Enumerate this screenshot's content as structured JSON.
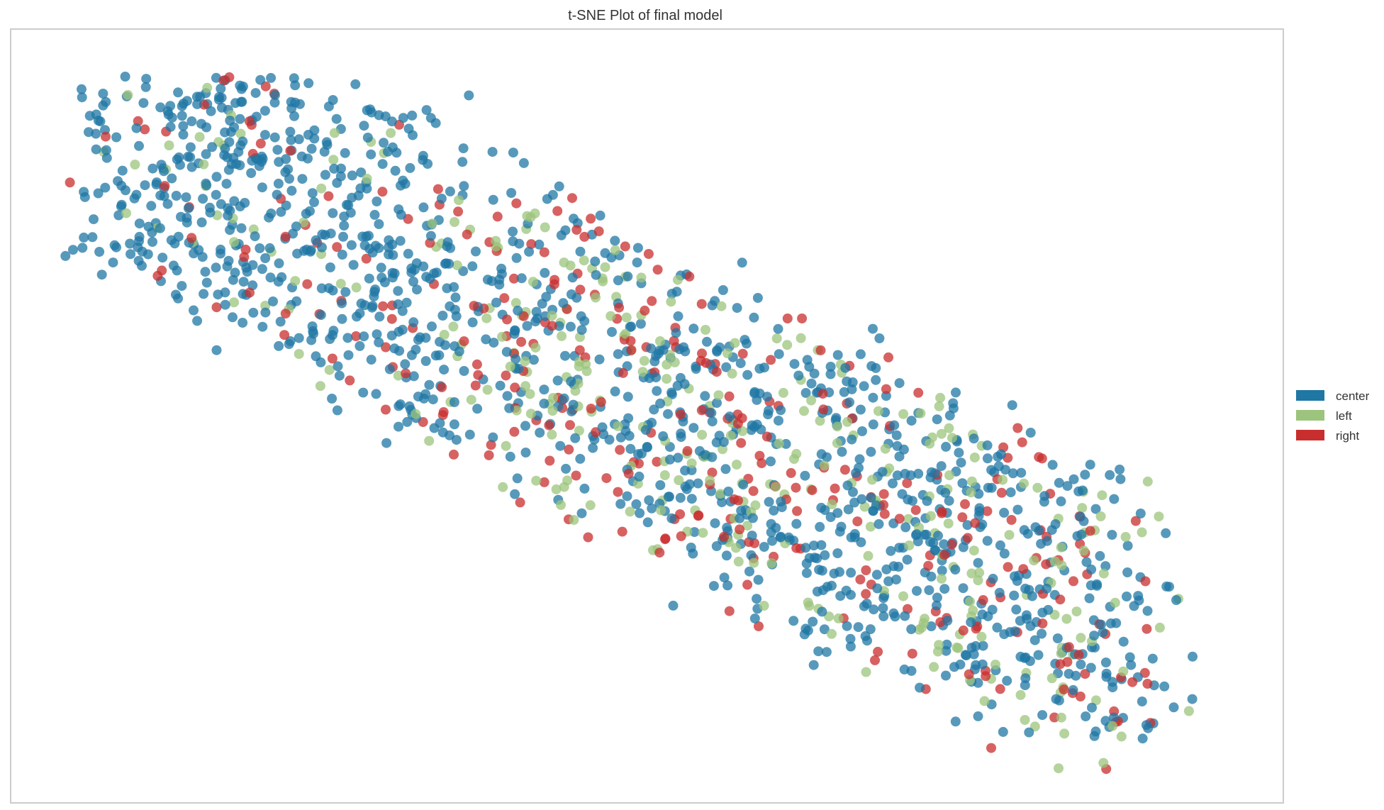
{
  "chart_data": {
    "type": "scatter",
    "title": "t-SNE Plot of final model",
    "xlabel": "",
    "ylabel": "",
    "xlim": [
      -1.0,
      1.0
    ],
    "ylim": [
      -1.0,
      1.0
    ],
    "grid": false,
    "legend_position": "right",
    "colors": {
      "center": "#1f77a4",
      "left": "#9cc47c",
      "right": "#c92e2e"
    },
    "series": [
      {
        "name": "center",
        "color": "#1f77a4",
        "points": []
      },
      {
        "name": "left",
        "color": "#9cc47c",
        "points": []
      },
      {
        "name": "right",
        "color": "#c92e2e",
        "points": []
      }
    ]
  }
}
